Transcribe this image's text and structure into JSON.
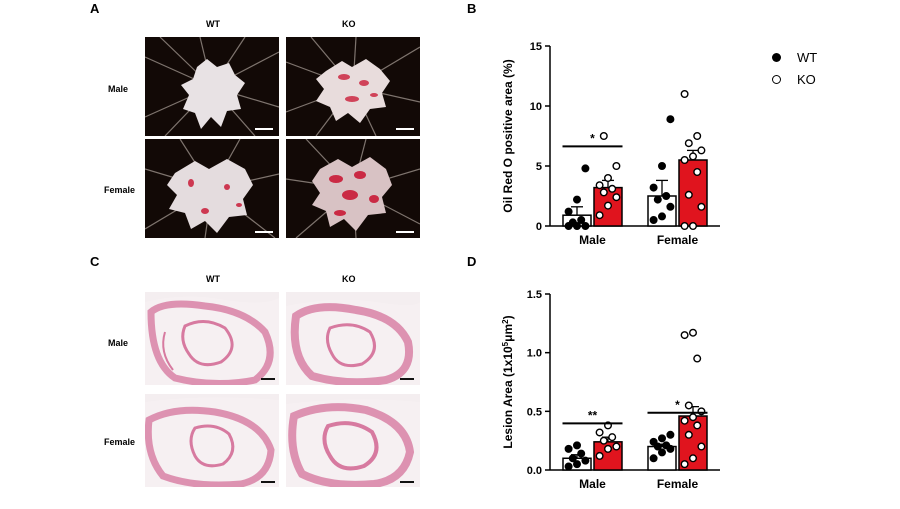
{
  "panels": {
    "A": {
      "letter": "A",
      "col_labels": [
        "WT",
        "KO"
      ],
      "row_labels": [
        "Male",
        "Female"
      ]
    },
    "B": {
      "letter": "B"
    },
    "C": {
      "letter": "C",
      "col_labels": [
        "WT",
        "KO"
      ],
      "row_labels": [
        "Male",
        "Female"
      ]
    },
    "D": {
      "letter": "D"
    }
  },
  "legend": {
    "items": [
      {
        "label": "WT",
        "marker": "filled",
        "color": "#000000"
      },
      {
        "label": "KO",
        "marker": "open",
        "color": "#000000"
      }
    ]
  },
  "colors": {
    "wt_bar": "#ffffff",
    "ko_bar": "#e0141e",
    "photo_bg": "#120906",
    "tissue": "#e8e2e4",
    "lesion": "#c8102e",
    "stain": "#d77aa0"
  },
  "chart_data": [
    {
      "id": "B",
      "type": "bar",
      "categories": [
        "Male",
        "Female"
      ],
      "ylabel": "Oil Red O positive area (%)",
      "ylim": [
        0,
        15
      ],
      "yticks": [
        0,
        5,
        10,
        15
      ],
      "ytick_labels": [
        "0",
        "5",
        "10",
        "15"
      ],
      "series": [
        {
          "name": "WT",
          "values": [
            0.9,
            2.5
          ],
          "errors": [
            0.7,
            1.3
          ],
          "points": [
            [
              0,
              0,
              0,
              0.3,
              0.5,
              1.2,
              2.2,
              4.8
            ],
            [
              0.5,
              0.8,
              1.6,
              2.2,
              2.5,
              3.2,
              5.0,
              8.9
            ]
          ]
        },
        {
          "name": "KO",
          "values": [
            3.2,
            5.5
          ],
          "errors": [
            0.6,
            0.8
          ],
          "points": [
            [
              0.9,
              1.7,
              2.4,
              2.8,
              3.1,
              3.4,
              4.0,
              5.0,
              7.5
            ],
            [
              0,
              0,
              1.6,
              2.6,
              4.5,
              5.5,
              5.8,
              6.3,
              6.9,
              7.5,
              11.0
            ]
          ]
        }
      ],
      "significance": [
        {
          "category": "Male",
          "label": "*"
        }
      ]
    },
    {
      "id": "D",
      "type": "bar",
      "categories": [
        "Male",
        "Female"
      ],
      "ylabel": "Lesion Area (1x10",
      "ylabel_sup": "5",
      "ylabel_unit": "μm",
      "ylabel_unit_sup": "2",
      "ylabel_end": ")",
      "ylim": [
        0,
        1.5
      ],
      "yticks": [
        0,
        0.5,
        1.0,
        1.5
      ],
      "ytick_labels": [
        "0.0",
        "0.5",
        "1.0",
        "1.5"
      ],
      "series": [
        {
          "name": "WT",
          "values": [
            0.1,
            0.2
          ],
          "errors": [
            0.03,
            0.02
          ],
          "points": [
            [
              0.03,
              0.05,
              0.08,
              0.1,
              0.14,
              0.18,
              0.21
            ],
            [
              0.1,
              0.15,
              0.18,
              0.2,
              0.21,
              0.24,
              0.27,
              0.3
            ]
          ]
        },
        {
          "name": "KO",
          "values": [
            0.24,
            0.46
          ],
          "errors": [
            0.04,
            0.08
          ],
          "points": [
            [
              0.12,
              0.18,
              0.2,
              0.25,
              0.28,
              0.32,
              0.38
            ],
            [
              0.05,
              0.1,
              0.2,
              0.3,
              0.38,
              0.42,
              0.45,
              0.5,
              0.55,
              0.95,
              1.15,
              1.17
            ]
          ]
        }
      ],
      "significance": [
        {
          "category": "Male",
          "label": "**"
        },
        {
          "category": "Female",
          "label": "*"
        }
      ]
    }
  ]
}
